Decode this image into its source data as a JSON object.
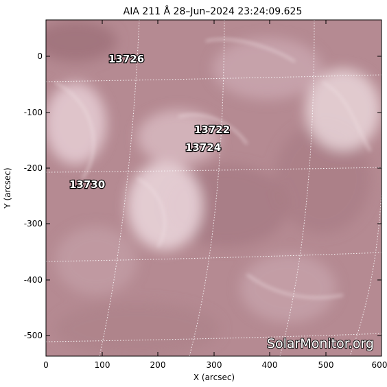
{
  "title": "AIA 211 Å 28–Jun–2024 23:24:09.625",
  "axes": {
    "xlabel": "X (arcsec)",
    "ylabel": "Y (arcsec)",
    "x_ticks": [
      "0",
      "100",
      "200",
      "300",
      "400",
      "500",
      "600"
    ],
    "y_ticks": [
      "0",
      "-100",
      "-200",
      "-300",
      "-400",
      "-500"
    ],
    "x_range": [
      0,
      600
    ],
    "y_range": [
      -540,
      65
    ]
  },
  "regions": [
    "13726",
    "13722",
    "13724",
    "13730"
  ],
  "credit": "SolarMonitor.org",
  "colors": {
    "solar_base": "#b88e95",
    "solar_bright": "#f2e2e5",
    "grid": "#ffffff"
  }
}
